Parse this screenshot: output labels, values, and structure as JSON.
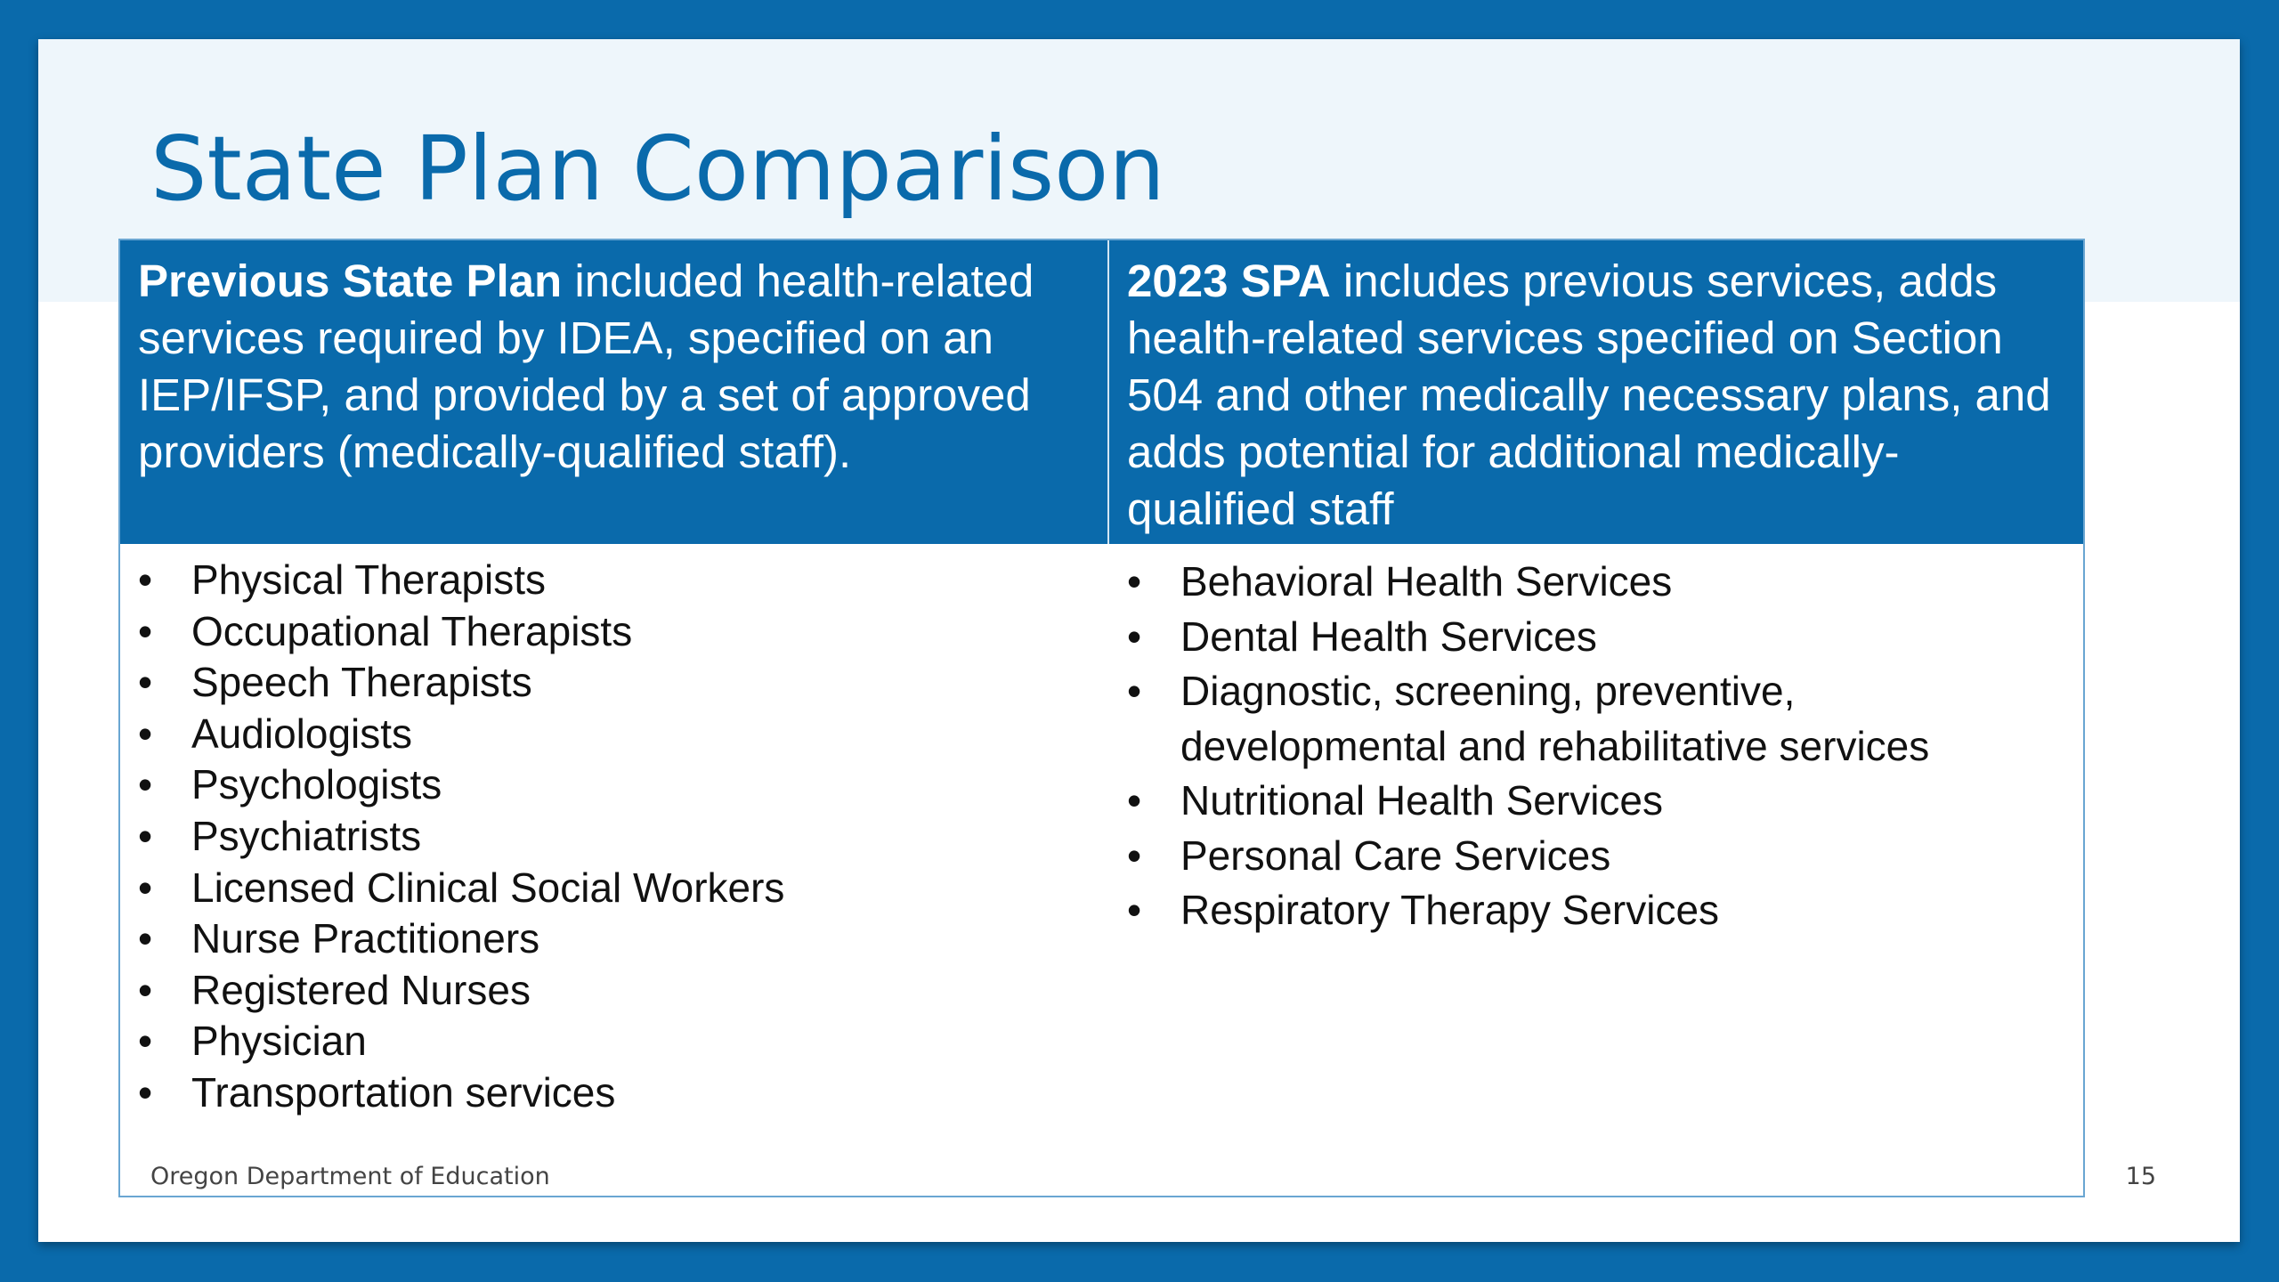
{
  "slide": {
    "title": "State Plan Comparison",
    "left_header": {
      "bold": "Previous State Plan",
      "text": " included health-related services required by IDEA, specified on an IEP/IFSP, and provided by a set of approved providers (medically-qualified staff)."
    },
    "right_header": {
      "bold": "2023 SPA",
      "text": " includes previous services, adds health-related services specified on Section 504 and other medically necessary plans, and adds potential for additional medically-qualified staff"
    },
    "left_items": [
      "Physical Therapists",
      "Occupational Therapists",
      "Speech Therapists",
      "Audiologists",
      "Psychologists",
      "Psychiatrists",
      "Licensed Clinical Social Workers",
      "Nurse Practitioners",
      "Registered Nurses",
      "Physician",
      "Transportation services"
    ],
    "right_items": [
      "Behavioral Health Services",
      "Dental Health Services",
      "Diagnostic, screening, preventive, developmental and rehabilitative services",
      "Nutritional Health Services",
      "Personal Care Services",
      "Respiratory Therapy Services"
    ],
    "footer_org": "Oregon Department of Education",
    "page_number": "15"
  }
}
